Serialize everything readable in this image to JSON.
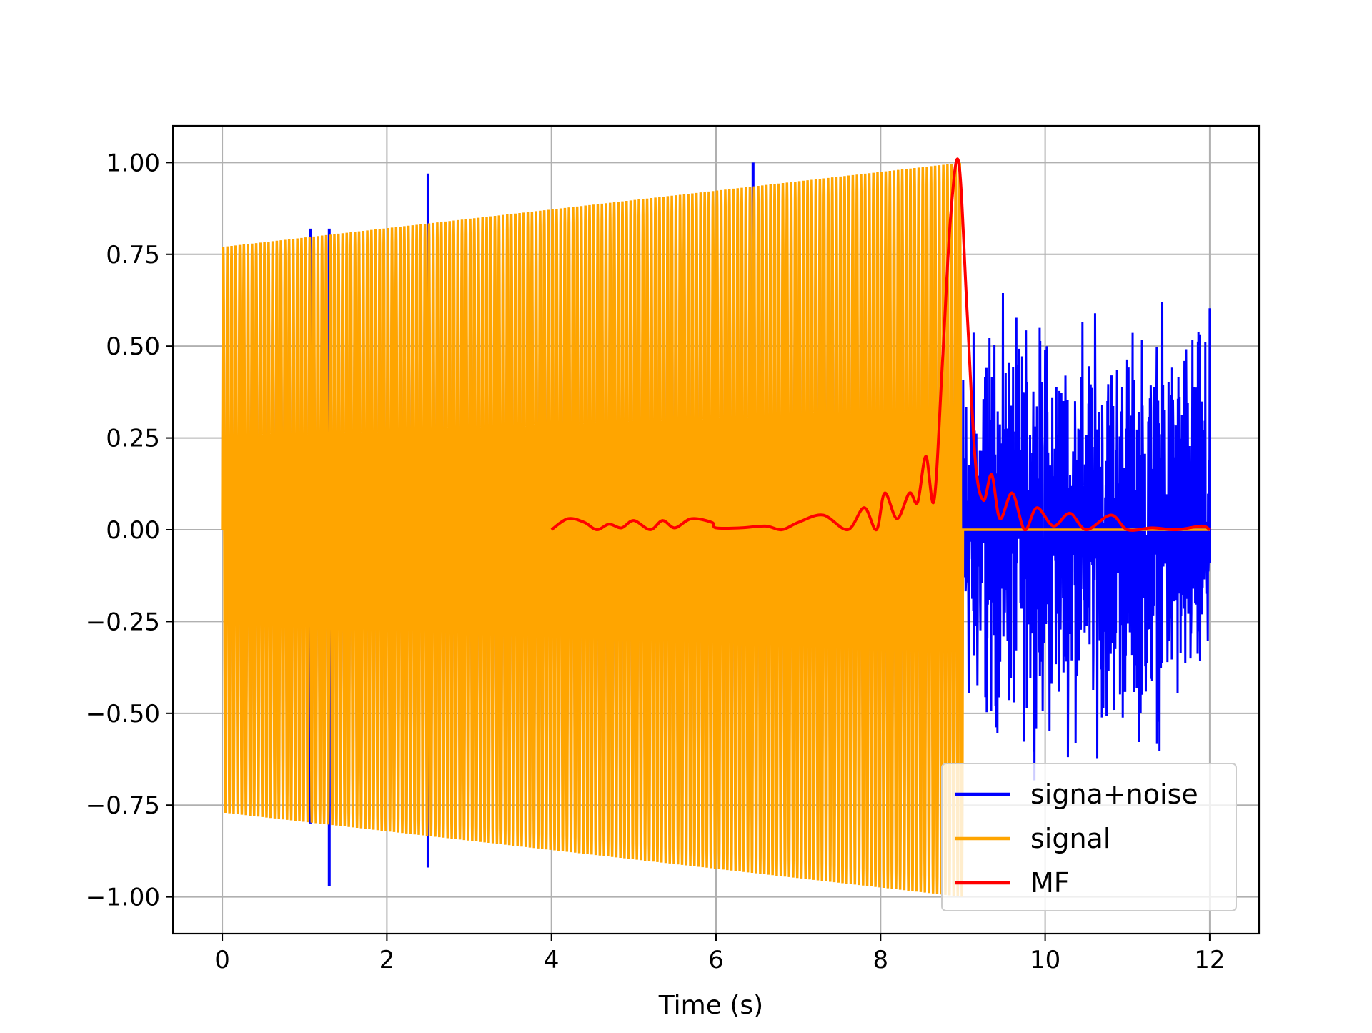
{
  "chart_data": {
    "type": "line",
    "title": "",
    "xlabel": "Time (s)",
    "ylabel": "",
    "xlim": [
      -0.6,
      12.6
    ],
    "ylim": [
      -1.1,
      1.1
    ],
    "x_ticks": [
      0,
      2,
      4,
      6,
      8,
      10,
      12
    ],
    "x_tick_labels": [
      "0",
      "2",
      "4",
      "6",
      "8",
      "10",
      "12"
    ],
    "y_ticks": [
      1.0,
      0.75,
      0.5,
      0.25,
      0.0,
      -0.25,
      -0.5,
      -0.75,
      -1.0
    ],
    "y_tick_labels": [
      "1.00",
      "0.75",
      "0.50",
      "0.25",
      "0.00",
      "−0.25",
      "−0.50",
      "−0.75",
      "−1.00"
    ],
    "grid": true,
    "legend_position": "lower-right",
    "series": [
      {
        "name": "signa+noise",
        "color": "#0000ff",
        "signal_span": [
          0,
          9
        ],
        "noise_span": [
          9,
          12
        ],
        "spikes": [
          {
            "x": 1.07,
            "y": 0.82
          },
          {
            "x": 1.07,
            "y": -0.8
          },
          {
            "x": 1.3,
            "y": 0.82
          },
          {
            "x": 1.3,
            "y": -0.97
          },
          {
            "x": 2.5,
            "y": 0.97
          },
          {
            "x": 2.5,
            "y": -0.92
          },
          {
            "x": 6.45,
            "y": 1.0
          }
        ],
        "noise_range": [
          -0.72,
          0.72
        ]
      },
      {
        "name": "signal",
        "color": "#ffa500",
        "x_start": 0,
        "x_end": 9,
        "envelope_start": 0.77,
        "envelope_end": 1.0,
        "value_after_end": 0.0
      },
      {
        "name": "MF",
        "color": "#ff0000",
        "x": [
          4.0,
          4.2,
          4.4,
          4.55,
          4.7,
          4.85,
          5.0,
          5.2,
          5.35,
          5.5,
          5.7,
          5.95,
          6.0,
          6.3,
          6.6,
          6.8,
          7.0,
          7.3,
          7.6,
          7.8,
          7.95,
          8.05,
          8.2,
          8.35,
          8.45,
          8.55,
          8.65,
          8.75,
          8.85,
          8.95,
          9.05,
          9.15,
          9.25,
          9.35,
          9.45,
          9.6,
          9.75,
          9.9,
          10.1,
          10.3,
          10.5,
          10.8,
          11.0,
          11.3,
          11.6,
          11.9,
          12.0
        ],
        "y": [
          0.0,
          0.03,
          0.02,
          0.0,
          0.015,
          0.005,
          0.025,
          0.0,
          0.025,
          0.005,
          0.03,
          0.02,
          0.005,
          0.005,
          0.01,
          0.0,
          0.02,
          0.04,
          0.0,
          0.06,
          0.0,
          0.1,
          0.03,
          0.1,
          0.075,
          0.2,
          0.08,
          0.45,
          0.85,
          1.0,
          0.6,
          0.19,
          0.08,
          0.15,
          0.03,
          0.1,
          0.0,
          0.06,
          0.01,
          0.045,
          0.0,
          0.04,
          0.0,
          0.005,
          0.0,
          0.01,
          0.0
        ]
      }
    ]
  }
}
